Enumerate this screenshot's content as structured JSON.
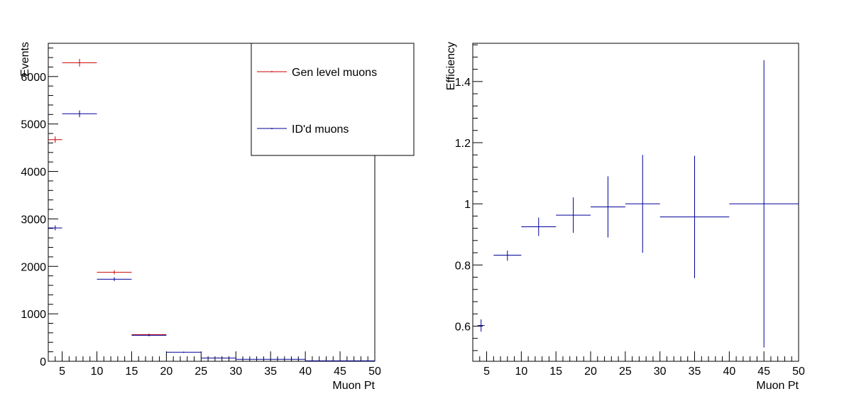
{
  "chart_data": [
    {
      "type": "histogram-errorbars",
      "xlabel": "Muon Pt",
      "ylabel": "Events",
      "xlim": [
        3,
        50
      ],
      "ylim": [
        0,
        6700
      ],
      "x_ticks": [
        "5",
        "10",
        "15",
        "20",
        "25",
        "30",
        "35",
        "40",
        "45",
        "50"
      ],
      "y_ticks": [
        "0",
        "1000",
        "2000",
        "3000",
        "4000",
        "5000",
        "6000"
      ],
      "legend": {
        "position": "top-right",
        "entries": [
          "Gen level muons",
          "ID'd muons"
        ]
      },
      "series": [
        {
          "name": "Gen level muons",
          "color": "#cc0000",
          "points": [
            {
              "xlo": 3,
              "xhi": 5,
              "y": 4670,
              "err": 68
            },
            {
              "xlo": 5,
              "xhi": 10,
              "y": 6290,
              "err": 80
            },
            {
              "xlo": 10,
              "xhi": 15,
              "y": 1875,
              "err": 43
            },
            {
              "xlo": 15,
              "xhi": 20,
              "y": 560,
              "err": 24
            }
          ]
        },
        {
          "name": "ID'd muons",
          "color": "#000099",
          "points": [
            {
              "xlo": 3,
              "xhi": 5,
              "y": 2810,
              "err": 53
            },
            {
              "xlo": 5,
              "xhi": 10,
              "y": 5215,
              "err": 72
            },
            {
              "xlo": 10,
              "xhi": 15,
              "y": 1730,
              "err": 42
            },
            {
              "xlo": 15,
              "xhi": 20,
              "y": 548,
              "err": 23
            },
            {
              "xlo": 20,
              "xhi": 25,
              "y": 190,
              "err": 14
            },
            {
              "xlo": 25,
              "xhi": 30,
              "y": 70,
              "err": 8
            },
            {
              "xlo": 30,
              "xhi": 40,
              "y": 42,
              "err": 6
            },
            {
              "xlo": 40,
              "xhi": 50,
              "y": 9,
              "err": 3
            }
          ]
        }
      ]
    },
    {
      "type": "errorbars",
      "xlabel": "Muon Pt",
      "ylabel": "Efficiency",
      "xlim": [
        3,
        50
      ],
      "ylim": [
        0.485,
        1.525
      ],
      "x_ticks": [
        "5",
        "10",
        "15",
        "20",
        "25",
        "30",
        "35",
        "40",
        "45",
        "50"
      ],
      "y_ticks": [
        "0.6",
        "0.8",
        "1",
        "1.2",
        "1.4"
      ],
      "series": [
        {
          "name": "",
          "color": "#000099",
          "points": [
            {
              "xlo": 3.7,
              "xhi": 4.7,
              "y": 0.602,
              "elo": 0.02,
              "ehi": 0.02
            },
            {
              "xlo": 6,
              "xhi": 10,
              "y": 0.832,
              "elo": 0.018,
              "ehi": 0.015
            },
            {
              "xlo": 10,
              "xhi": 15,
              "y": 0.925,
              "elo": 0.03,
              "ehi": 0.03
            },
            {
              "xlo": 15,
              "xhi": 20,
              "y": 0.963,
              "elo": 0.058,
              "ehi": 0.058
            },
            {
              "xlo": 20,
              "xhi": 25,
              "y": 0.99,
              "elo": 0.1,
              "ehi": 0.1
            },
            {
              "xlo": 25,
              "xhi": 30,
              "y": 1.0,
              "elo": 0.16,
              "ehi": 0.16
            },
            {
              "xlo": 30,
              "xhi": 40,
              "y": 0.957,
              "elo": 0.2,
              "ehi": 0.2
            },
            {
              "xlo": 40,
              "xhi": 50,
              "y": 1.0,
              "elo": 0.47,
              "ehi": 0.47
            }
          ]
        }
      ]
    }
  ]
}
